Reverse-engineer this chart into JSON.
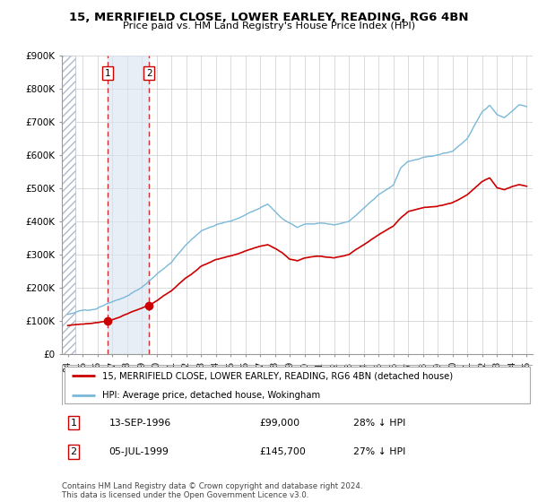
{
  "title": "15, MERRIFIELD CLOSE, LOWER EARLEY, READING, RG6 4BN",
  "subtitle": "Price paid vs. HM Land Registry's House Price Index (HPI)",
  "ylim": [
    0,
    900000
  ],
  "yticks": [
    0,
    100000,
    200000,
    300000,
    400000,
    500000,
    600000,
    700000,
    800000,
    900000
  ],
  "ytick_labels": [
    "£0",
    "£100K",
    "£200K",
    "£300K",
    "£400K",
    "£500K",
    "£600K",
    "£700K",
    "£800K",
    "£900K"
  ],
  "xlim_start": 1993.6,
  "xlim_end": 2025.4,
  "hpi_color": "#7ab8d9",
  "price_color": "#cc0000",
  "sale1_x": 1996.7,
  "sale1_y": 99000,
  "sale2_x": 1999.5,
  "sale2_y": 145700,
  "legend_line1": "15, MERRIFIELD CLOSE, LOWER EARLEY, READING, RG6 4BN (detached house)",
  "legend_line2": "HPI: Average price, detached house, Wokingham",
  "note1_num": "1",
  "note1_date": "13-SEP-1996",
  "note1_price": "£99,000",
  "note1_hpi": "28% ↓ HPI",
  "note2_num": "2",
  "note2_date": "05-JUL-1999",
  "note2_price": "£145,700",
  "note2_hpi": "27% ↓ HPI",
  "footnote": "Contains HM Land Registry data © Crown copyright and database right 2024.\nThis data is licensed under the Open Government Licence v3.0.",
  "vline_color": "#cc0000",
  "hatch_color": "#d8e4f0",
  "hatch_edge": "#b0c0d0"
}
